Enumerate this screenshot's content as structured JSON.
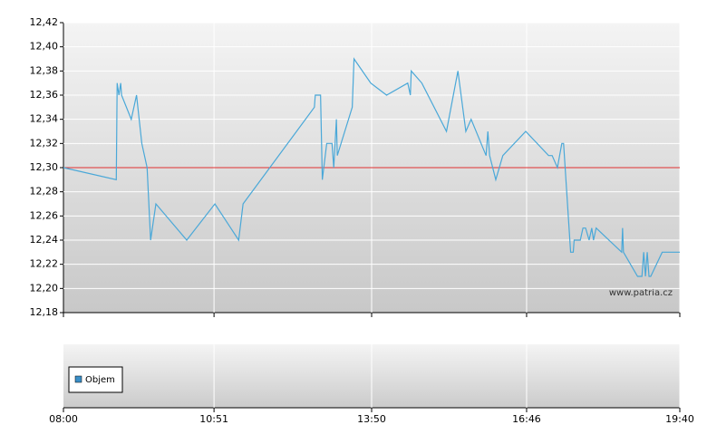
{
  "chart_data": {
    "type": "line",
    "x": [
      "08:00",
      "09:00",
      "09:01",
      "09:03",
      "09:05",
      "09:06",
      "09:17",
      "09:23",
      "09:29",
      "09:35",
      "09:39",
      "09:45",
      "10:20",
      "10:52",
      "11:19",
      "11:24",
      "12:45",
      "12:46",
      "12:52",
      "12:54",
      "12:59",
      "13:05",
      "13:07",
      "13:10",
      "13:11",
      "13:28",
      "13:30",
      "13:49",
      "14:07",
      "14:31",
      "14:34",
      "14:35",
      "14:47",
      "15:15",
      "15:28",
      "15:37",
      "15:43",
      "16:00",
      "16:02",
      "16:04",
      "16:11",
      "16:19",
      "16:45",
      "17:11",
      "17:15",
      "17:21",
      "17:26",
      "17:28",
      "17:36",
      "17:39",
      "17:40",
      "17:47",
      "17:50",
      "17:53",
      "17:57",
      "18:00",
      "18:02",
      "18:05",
      "18:34",
      "18:35",
      "18:36",
      "18:52",
      "18:57",
      "18:59",
      "19:01",
      "19:03",
      "19:05",
      "19:07",
      "19:20",
      "19:40"
    ],
    "series": [
      {
        "color": "#4aa8d8",
        "values": [
          12.3,
          12.29,
          12.37,
          12.36,
          12.37,
          12.36,
          12.34,
          12.36,
          12.32,
          12.3,
          12.24,
          12.27,
          12.24,
          12.27,
          12.24,
          12.27,
          12.35,
          12.36,
          12.36,
          12.29,
          12.32,
          12.32,
          12.3,
          12.34,
          12.31,
          12.35,
          12.39,
          12.37,
          12.36,
          12.37,
          12.36,
          12.38,
          12.37,
          12.33,
          12.38,
          12.33,
          12.34,
          12.31,
          12.33,
          12.31,
          12.29,
          12.31,
          12.33,
          12.31,
          12.31,
          12.3,
          12.32,
          12.32,
          12.23,
          12.23,
          12.24,
          12.24,
          12.25,
          12.25,
          12.24,
          12.25,
          12.24,
          12.25,
          12.23,
          12.25,
          12.23,
          12.21,
          12.21,
          12.23,
          12.21,
          12.23,
          12.21,
          12.21,
          12.23,
          12.23
        ]
      }
    ],
    "xlim": [
      "08:00",
      "19:40"
    ],
    "xticks": [
      "08:00",
      "10:51",
      "13:50",
      "16:46",
      "19:40"
    ],
    "ylim": [
      12.18,
      12.42
    ],
    "yticks": [
      {
        "value": 12.18,
        "label": "12,18"
      },
      {
        "value": 12.2,
        "label": "12,20"
      },
      {
        "value": 12.22,
        "label": "12,22"
      },
      {
        "value": 12.24,
        "label": "12,24"
      },
      {
        "value": 12.26,
        "label": "12,26"
      },
      {
        "value": 12.28,
        "label": "12,28"
      },
      {
        "value": 12.3,
        "label": "12,30"
      },
      {
        "value": 12.32,
        "label": "12,32"
      },
      {
        "value": 12.34,
        "label": "12,34"
      },
      {
        "value": 12.36,
        "label": "12,36"
      },
      {
        "value": 12.38,
        "label": "12,38"
      },
      {
        "value": 12.4,
        "label": "12,40"
      },
      {
        "value": 12.42,
        "label": "12,42"
      }
    ],
    "grid": true,
    "reference_line": {
      "value": 12.3,
      "color": "#e03030"
    },
    "watermark": "www.patria.cz",
    "volume": {
      "name": "Objem",
      "color": "#3a8fc8"
    }
  }
}
